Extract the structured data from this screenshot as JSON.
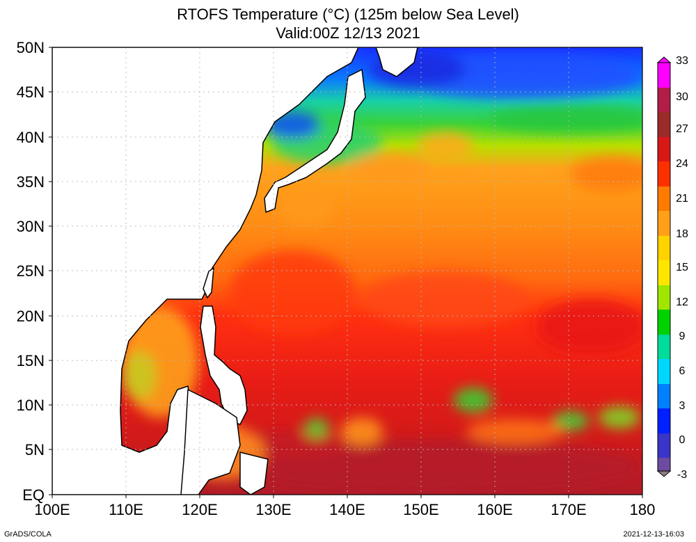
{
  "title": "RTOFS Temperature (°C) (125m below Sea Level)",
  "subtitle": "Valid:00Z 12/13 2021",
  "footer_left": "GrADS/COLA",
  "footer_right": "2021-12-13-16:03",
  "map": {
    "lon_range": [
      100,
      180
    ],
    "lat_range": [
      0,
      50
    ],
    "lon_ticks": [
      "100E",
      "110E",
      "120E",
      "130E",
      "140E",
      "150E",
      "160E",
      "170E",
      "180"
    ],
    "lat_ticks": [
      "EQ",
      "5N",
      "10N",
      "15N",
      "20N",
      "25N",
      "30N",
      "35N",
      "40N",
      "45N",
      "50N"
    ],
    "grid": true,
    "land_color": "#ffffff",
    "coastline_color": "#000000"
  },
  "colorbar": {
    "ticks": [
      "33",
      "30",
      "27",
      "24",
      "21",
      "18",
      "15",
      "12",
      "9",
      "6",
      "3",
      "0",
      "-3"
    ],
    "colors": [
      "#ff00ff",
      "#b31d48",
      "#9b2a2a",
      "#d81717",
      "#ff3000",
      "#ff7a00",
      "#ffa018",
      "#ffd200",
      "#a0e600",
      "#00d200",
      "#00dc9a",
      "#00d7ff",
      "#0080ff",
      "#0020ff",
      "#3b34c8",
      "#6d4ba0",
      "#8a7f7f"
    ]
  }
}
